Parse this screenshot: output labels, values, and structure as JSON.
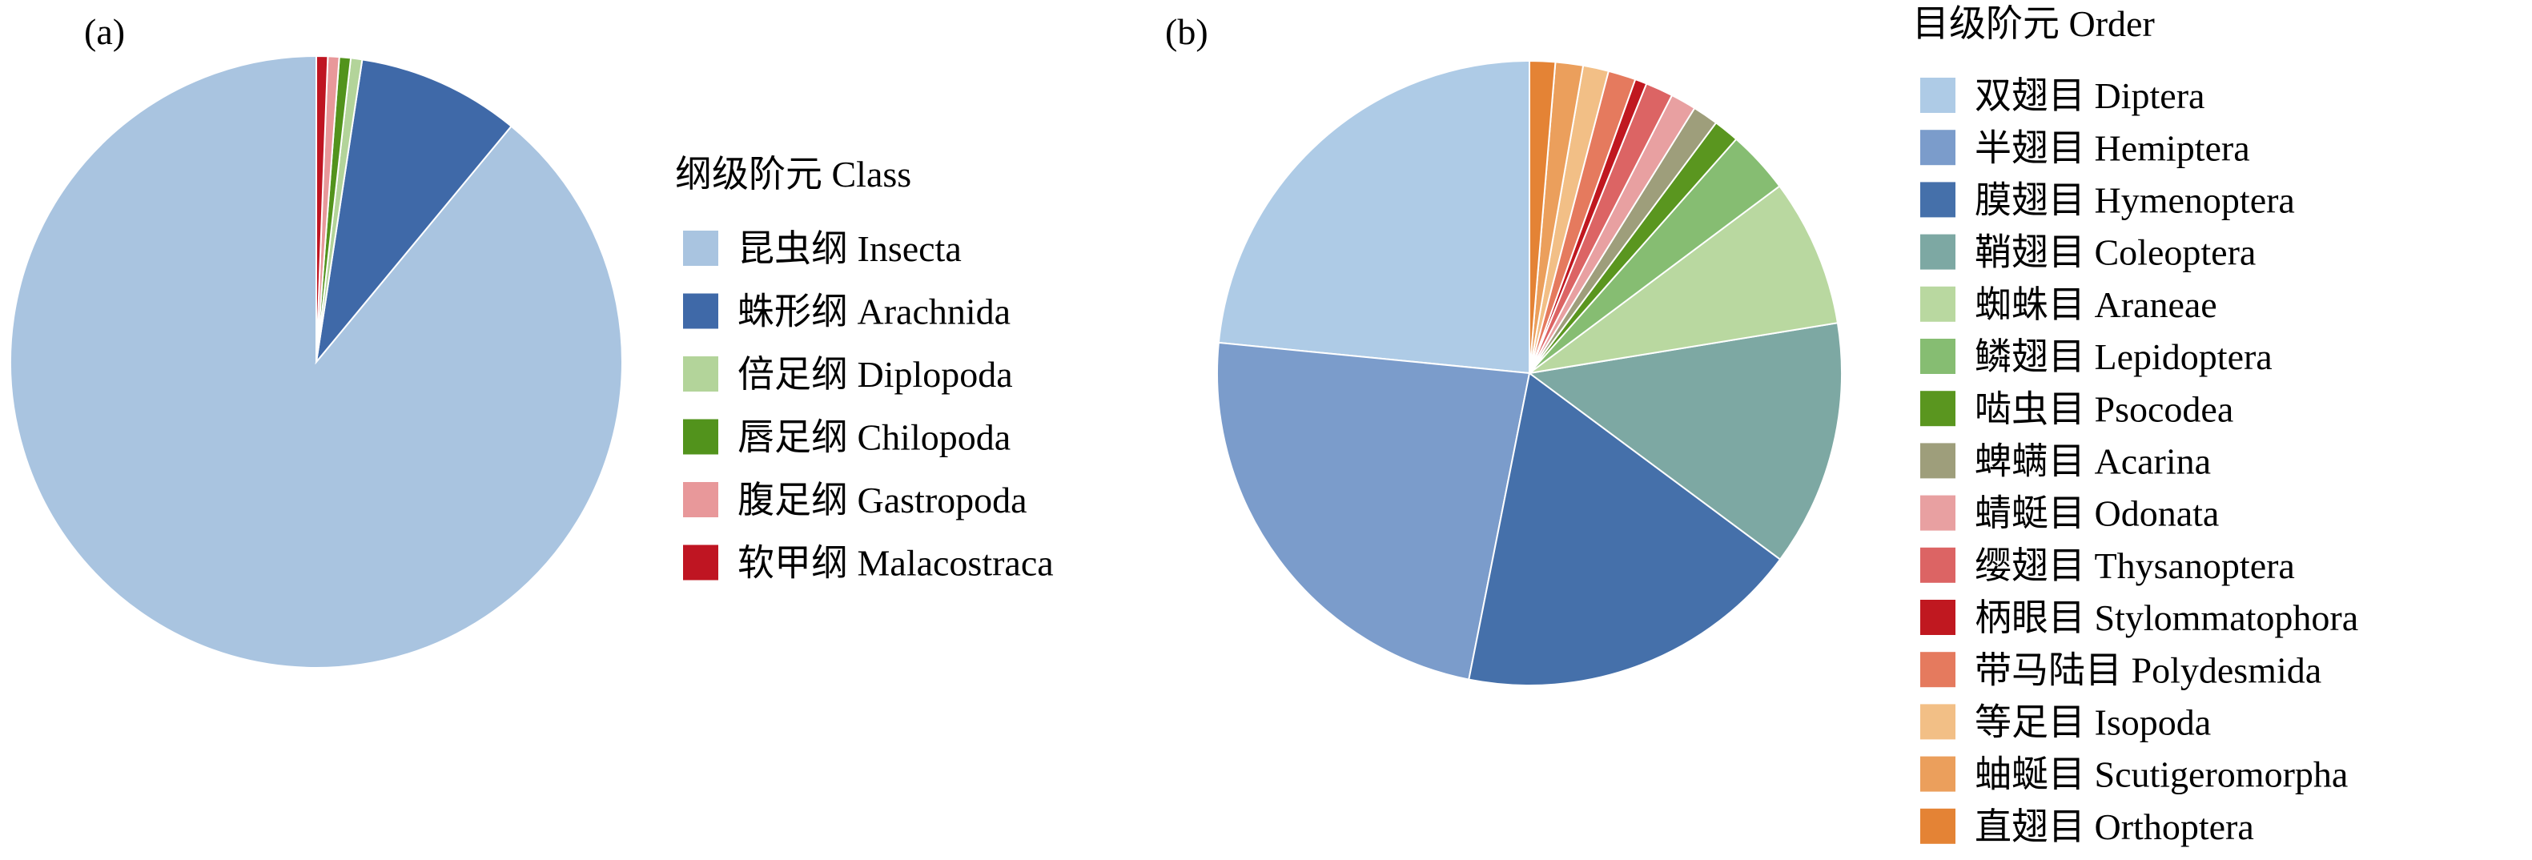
{
  "panels": [
    {
      "label": "(a)"
    },
    {
      "label": "(b)"
    }
  ],
  "chart_data": [
    {
      "type": "pie",
      "legend_title": "纲级阶元 Class",
      "legend_position": "right",
      "slices": [
        {
          "name": "昆虫纲 Insecta",
          "value": 89.0,
          "color": "#a9c4e0"
        },
        {
          "name": "蛛形纲 Arachnida",
          "value": 8.6,
          "color": "#3f69a8"
        },
        {
          "name": "倍足纲 Diplopoda",
          "value": 0.6,
          "color": "#b3d49a"
        },
        {
          "name": "唇足纲 Chilopoda",
          "value": 0.6,
          "color": "#52931c"
        },
        {
          "name": "腹足纲 Gastropoda",
          "value": 0.6,
          "color": "#e8989a"
        },
        {
          "name": "软甲纲 Malacostraca",
          "value": 0.6,
          "color": "#bf1522"
        }
      ]
    },
    {
      "type": "pie",
      "legend_title": "目级阶元 Order",
      "legend_position": "right",
      "slices": [
        {
          "name": "双翅目 Diptera",
          "value": 23.0,
          "color": "#aecbe6"
        },
        {
          "name": "半翅目 Hemiptera",
          "value": 23.0,
          "color": "#7b9ccb"
        },
        {
          "name": "膜翅目 Hymenoptera",
          "value": 17.6,
          "color": "#4570aa"
        },
        {
          "name": "鞘翅目 Coleoptera",
          "value": 12.5,
          "color": "#7da8a3"
        },
        {
          "name": "蜘蛛目 Araneae",
          "value": 7.5,
          "color": "#b9d8a0"
        },
        {
          "name": "鳞翅目 Lepidoptera",
          "value": 3.2,
          "color": "#86bd72"
        },
        {
          "name": "啮虫目 Psocodea",
          "value": 1.3,
          "color": "#5a961f"
        },
        {
          "name": "蜱螨目 Acarina",
          "value": 1.3,
          "color": "#9e9e7b"
        },
        {
          "name": "蜻蜓目 Odonata",
          "value": 1.3,
          "color": "#e8a0a1"
        },
        {
          "name": "缨翅目 Thysanoptera",
          "value": 1.4,
          "color": "#dc6464"
        },
        {
          "name": "柄眼目 Stylommatophora",
          "value": 0.6,
          "color": "#c01820"
        },
        {
          "name": "带马陆目 Polydesmida",
          "value": 1.4,
          "color": "#e57a5e"
        },
        {
          "name": "等足目 Isopoda",
          "value": 1.3,
          "color": "#f2bf86"
        },
        {
          "name": "蚰蜒目 Scutigeromorpha",
          "value": 1.4,
          "color": "#eb9f5c"
        },
        {
          "name": "直翅目 Orthoptera",
          "value": 1.3,
          "color": "#e48335"
        }
      ]
    }
  ]
}
